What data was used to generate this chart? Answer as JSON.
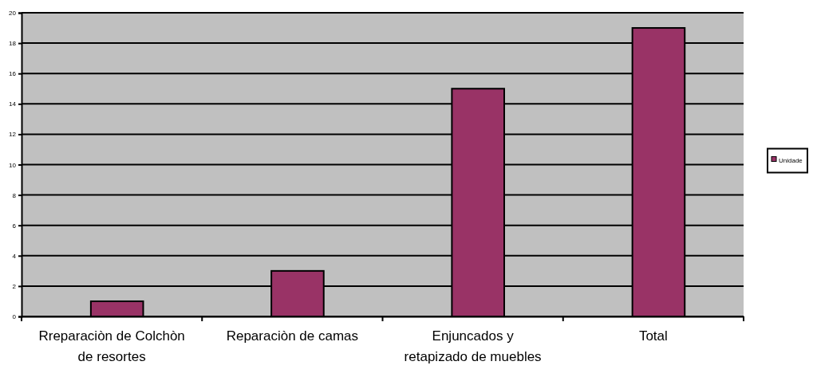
{
  "chart_data": {
    "type": "bar",
    "categories": [
      "Rreparaciòn de Colchòn de resortes",
      "Reparaciòn de camas",
      "Enjuncados y retapizado de muebles",
      "Total"
    ],
    "series": [
      {
        "name": "Unidade",
        "color": "#993366",
        "values": [
          1,
          3,
          15,
          19
        ]
      }
    ],
    "ylim": [
      0,
      20
    ],
    "yticks": [
      0,
      2,
      4,
      6,
      8,
      10,
      12,
      14,
      16,
      18,
      20
    ],
    "grid": "y",
    "legend": "right"
  }
}
